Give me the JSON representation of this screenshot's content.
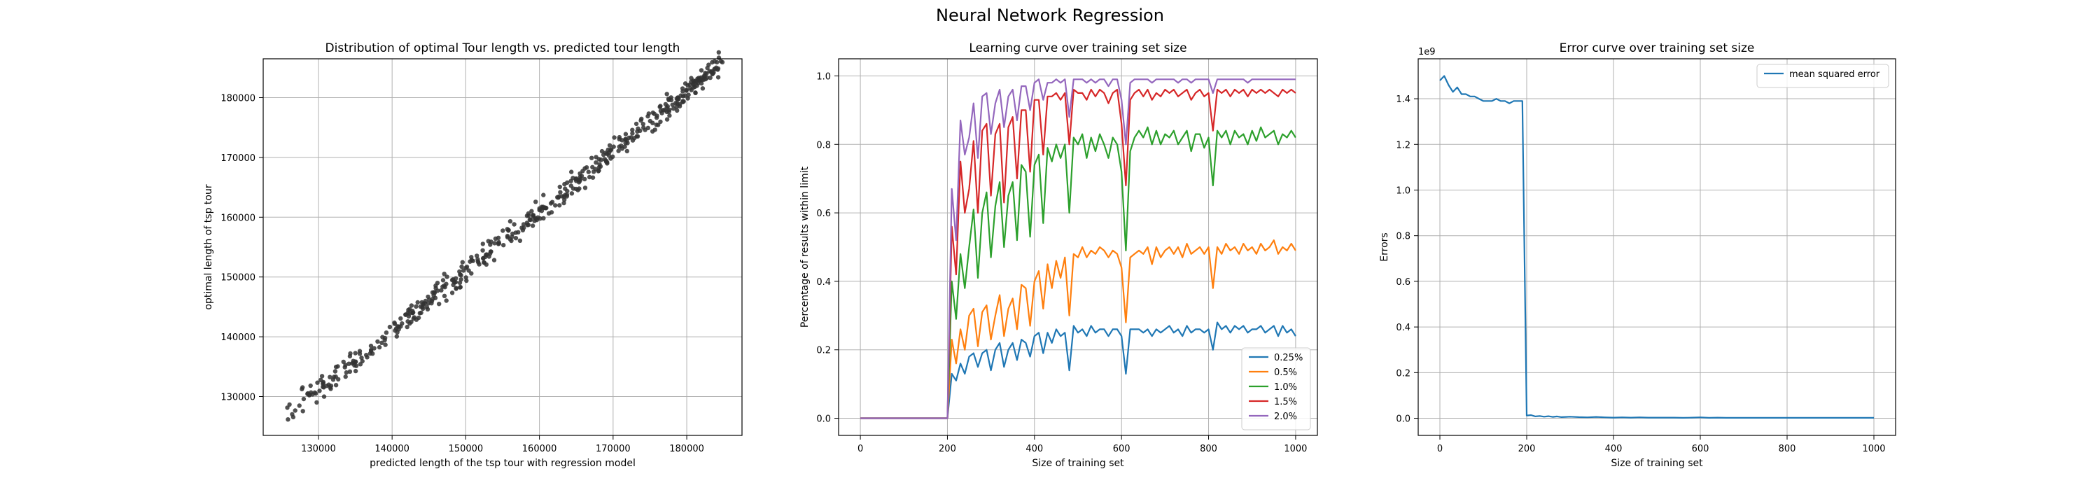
{
  "suptitle": "Neural Network Regression",
  "chart_data": [
    {
      "type": "scatter",
      "title": "Distribution of optimal Tour length vs. predicted tour length",
      "xlabel": "predicted length of the tsp tour with regression model",
      "ylabel": "optimal length of tsp tour",
      "xlim": [
        122500,
        187500
      ],
      "ylim": [
        123500,
        186500
      ],
      "xticks": [
        130000,
        140000,
        150000,
        160000,
        170000,
        180000
      ],
      "yticks": [
        130000,
        140000,
        150000,
        160000,
        170000,
        180000
      ],
      "grid": true,
      "point_color": "#333333",
      "trend": {
        "x_range": [
          125500,
          185000
        ],
        "slope": 1.0,
        "intercept": 1000,
        "scatter": 1200,
        "count": 500
      }
    },
    {
      "type": "line",
      "title": "Learning curve over training set size",
      "xlabel": "Size of training set",
      "ylabel": "Percentage of results within limit",
      "xlim": [
        -50,
        1050
      ],
      "ylim": [
        -0.05,
        1.05
      ],
      "xticks": [
        0,
        200,
        400,
        600,
        800,
        1000
      ],
      "yticks": [
        0.0,
        0.2,
        0.4,
        0.6,
        0.8,
        1.0
      ],
      "grid": true,
      "legend_position": "lower-right",
      "x": [
        0,
        200,
        210,
        220,
        230,
        240,
        250,
        260,
        270,
        280,
        290,
        300,
        310,
        320,
        330,
        340,
        350,
        360,
        370,
        380,
        390,
        400,
        410,
        420,
        430,
        440,
        450,
        460,
        470,
        480,
        490,
        500,
        510,
        520,
        530,
        540,
        550,
        560,
        570,
        580,
        590,
        600,
        610,
        620,
        630,
        640,
        650,
        660,
        670,
        680,
        690,
        700,
        710,
        720,
        730,
        740,
        750,
        760,
        770,
        780,
        790,
        800,
        810,
        820,
        830,
        840,
        850,
        860,
        870,
        880,
        890,
        900,
        910,
        920,
        930,
        940,
        950,
        960,
        970,
        980,
        990,
        1000
      ],
      "series": [
        {
          "name": "0.25%",
          "color": "#1f77b4",
          "values": [
            0.0,
            0.0,
            0.13,
            0.11,
            0.16,
            0.13,
            0.18,
            0.19,
            0.15,
            0.19,
            0.2,
            0.14,
            0.2,
            0.22,
            0.15,
            0.2,
            0.22,
            0.17,
            0.23,
            0.22,
            0.18,
            0.24,
            0.25,
            0.19,
            0.25,
            0.22,
            0.26,
            0.24,
            0.25,
            0.14,
            0.27,
            0.25,
            0.26,
            0.24,
            0.27,
            0.25,
            0.26,
            0.26,
            0.24,
            0.26,
            0.26,
            0.24,
            0.13,
            0.26,
            0.26,
            0.26,
            0.25,
            0.26,
            0.24,
            0.26,
            0.25,
            0.26,
            0.27,
            0.25,
            0.26,
            0.24,
            0.27,
            0.25,
            0.26,
            0.26,
            0.25,
            0.26,
            0.2,
            0.28,
            0.26,
            0.27,
            0.25,
            0.27,
            0.26,
            0.27,
            0.25,
            0.26,
            0.26,
            0.27,
            0.25,
            0.26,
            0.27,
            0.24,
            0.27,
            0.25,
            0.26,
            0.24
          ]
        },
        {
          "name": "0.5%",
          "color": "#ff7f0e",
          "values": [
            0.0,
            0.0,
            0.23,
            0.16,
            0.26,
            0.2,
            0.3,
            0.32,
            0.21,
            0.31,
            0.33,
            0.23,
            0.3,
            0.36,
            0.24,
            0.32,
            0.35,
            0.26,
            0.39,
            0.38,
            0.27,
            0.4,
            0.43,
            0.32,
            0.45,
            0.38,
            0.46,
            0.41,
            0.47,
            0.3,
            0.48,
            0.47,
            0.5,
            0.47,
            0.49,
            0.48,
            0.5,
            0.49,
            0.47,
            0.49,
            0.48,
            0.44,
            0.28,
            0.47,
            0.48,
            0.49,
            0.48,
            0.5,
            0.45,
            0.5,
            0.47,
            0.49,
            0.5,
            0.48,
            0.5,
            0.47,
            0.51,
            0.48,
            0.49,
            0.5,
            0.48,
            0.5,
            0.38,
            0.5,
            0.48,
            0.51,
            0.49,
            0.5,
            0.48,
            0.51,
            0.49,
            0.5,
            0.48,
            0.51,
            0.49,
            0.5,
            0.52,
            0.48,
            0.5,
            0.49,
            0.51,
            0.49
          ]
        },
        {
          "name": "1.0%",
          "color": "#2ca02c",
          "values": [
            0.0,
            0.0,
            0.4,
            0.29,
            0.48,
            0.38,
            0.5,
            0.61,
            0.41,
            0.6,
            0.66,
            0.47,
            0.62,
            0.69,
            0.5,
            0.65,
            0.69,
            0.52,
            0.74,
            0.72,
            0.53,
            0.74,
            0.77,
            0.57,
            0.79,
            0.75,
            0.8,
            0.76,
            0.8,
            0.6,
            0.82,
            0.8,
            0.83,
            0.76,
            0.82,
            0.78,
            0.83,
            0.8,
            0.76,
            0.82,
            0.8,
            0.72,
            0.49,
            0.78,
            0.82,
            0.84,
            0.82,
            0.85,
            0.8,
            0.84,
            0.8,
            0.83,
            0.82,
            0.84,
            0.8,
            0.82,
            0.84,
            0.78,
            0.83,
            0.83,
            0.79,
            0.82,
            0.68,
            0.84,
            0.82,
            0.84,
            0.8,
            0.84,
            0.82,
            0.83,
            0.8,
            0.84,
            0.81,
            0.85,
            0.82,
            0.83,
            0.84,
            0.8,
            0.83,
            0.82,
            0.84,
            0.82
          ]
        },
        {
          "name": "1.5%",
          "color": "#d62728",
          "values": [
            0.0,
            0.0,
            0.56,
            0.42,
            0.75,
            0.6,
            0.67,
            0.81,
            0.6,
            0.84,
            0.86,
            0.65,
            0.83,
            0.86,
            0.63,
            0.85,
            0.88,
            0.7,
            0.9,
            0.9,
            0.72,
            0.93,
            0.93,
            0.77,
            0.94,
            0.94,
            0.95,
            0.93,
            0.95,
            0.8,
            0.96,
            0.95,
            0.95,
            0.93,
            0.96,
            0.94,
            0.96,
            0.95,
            0.92,
            0.95,
            0.96,
            0.86,
            0.68,
            0.93,
            0.95,
            0.96,
            0.94,
            0.96,
            0.93,
            0.95,
            0.94,
            0.96,
            0.95,
            0.96,
            0.94,
            0.95,
            0.96,
            0.93,
            0.95,
            0.96,
            0.94,
            0.95,
            0.84,
            0.96,
            0.95,
            0.96,
            0.94,
            0.96,
            0.95,
            0.96,
            0.94,
            0.96,
            0.95,
            0.96,
            0.95,
            0.96,
            0.95,
            0.94,
            0.96,
            0.95,
            0.96,
            0.95
          ]
        },
        {
          "name": "2.0%",
          "color": "#9467bd",
          "values": [
            0.0,
            0.0,
            0.67,
            0.52,
            0.87,
            0.77,
            0.82,
            0.92,
            0.76,
            0.94,
            0.95,
            0.83,
            0.92,
            0.96,
            0.85,
            0.94,
            0.96,
            0.87,
            0.97,
            0.97,
            0.9,
            0.98,
            0.99,
            0.93,
            0.98,
            0.98,
            0.99,
            0.98,
            0.99,
            0.88,
            0.99,
            0.99,
            0.99,
            0.98,
            0.99,
            0.98,
            0.99,
            0.99,
            0.97,
            0.99,
            0.99,
            0.93,
            0.8,
            0.98,
            0.99,
            0.99,
            0.99,
            0.99,
            0.98,
            0.99,
            0.99,
            0.99,
            0.99,
            0.99,
            0.98,
            0.99,
            0.99,
            0.98,
            0.99,
            0.99,
            0.99,
            0.99,
            0.95,
            0.99,
            0.99,
            0.99,
            0.99,
            0.99,
            0.99,
            0.99,
            0.98,
            0.99,
            0.99,
            0.99,
            0.99,
            0.99,
            0.99,
            0.99,
            0.99,
            0.99,
            0.99,
            0.99
          ]
        }
      ]
    },
    {
      "type": "line",
      "title": "Error curve over training set size",
      "xlabel": "Size of training set",
      "ylabel": "Errors",
      "offset_label": "1e9",
      "xlim": [
        -50,
        1050
      ],
      "ylim": [
        -0.075,
        1.575
      ],
      "xticks": [
        0,
        200,
        400,
        600,
        800,
        1000
      ],
      "yticks": [
        0.0,
        0.2,
        0.4,
        0.6,
        0.8,
        1.0,
        1.2,
        1.4
      ],
      "grid": true,
      "legend_position": "top-right",
      "x": [
        0,
        10,
        20,
        30,
        40,
        50,
        60,
        70,
        80,
        90,
        100,
        110,
        120,
        130,
        140,
        150,
        160,
        170,
        180,
        190,
        200,
        210,
        220,
        230,
        240,
        250,
        260,
        270,
        280,
        290,
        300,
        320,
        340,
        360,
        380,
        400,
        420,
        440,
        460,
        480,
        500,
        520,
        540,
        560,
        580,
        600,
        620,
        640,
        660,
        680,
        700,
        750,
        800,
        850,
        900,
        950,
        1000
      ],
      "series": [
        {
          "name": "mean squared error",
          "color": "#1f77b4",
          "values": [
            1.48,
            1.5,
            1.46,
            1.43,
            1.45,
            1.42,
            1.42,
            1.41,
            1.41,
            1.4,
            1.39,
            1.39,
            1.39,
            1.4,
            1.39,
            1.39,
            1.38,
            1.39,
            1.39,
            1.39,
            0.012,
            0.014,
            0.008,
            0.01,
            0.007,
            0.009,
            0.006,
            0.008,
            0.005,
            0.006,
            0.007,
            0.005,
            0.004,
            0.006,
            0.004,
            0.003,
            0.004,
            0.003,
            0.004,
            0.003,
            0.003,
            0.003,
            0.003,
            0.002,
            0.003,
            0.004,
            0.002,
            0.003,
            0.002,
            0.002,
            0.002,
            0.002,
            0.002,
            0.002,
            0.002,
            0.002,
            0.002
          ]
        }
      ]
    }
  ]
}
